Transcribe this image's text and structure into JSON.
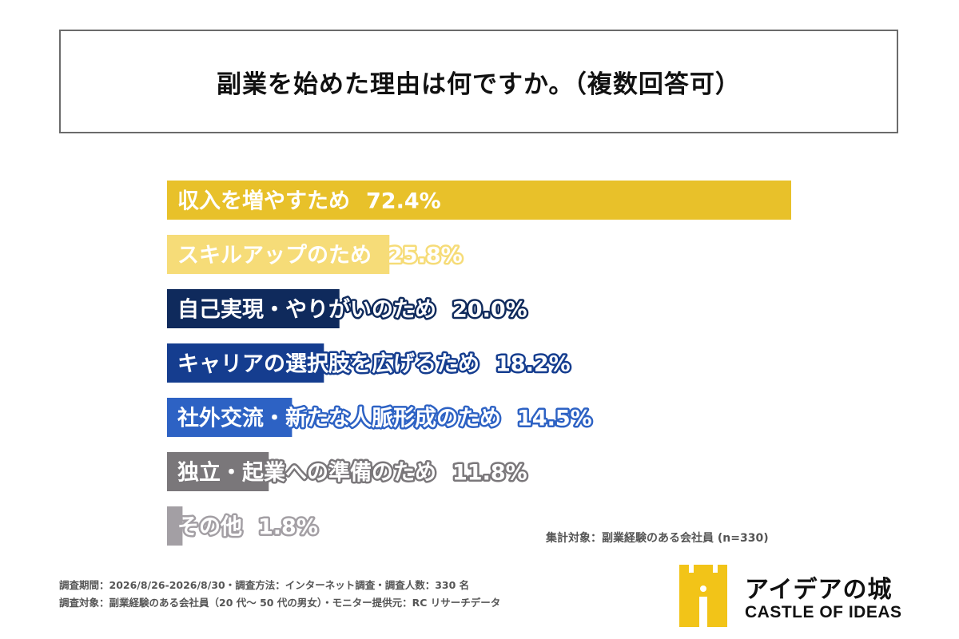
{
  "title": "副業を始めた理由は何ですか。（複数回答可）",
  "chart_data": {
    "type": "bar",
    "orientation": "horizontal",
    "categories": [
      "収入を増やすため",
      "スキルアップのため",
      "自己実現・やりがいのため",
      "キャリアの選択肢を広げるため",
      "社外交流・新たな人脈形成のため",
      "独立・起業への準備のため",
      "その他"
    ],
    "values": [
      72.4,
      25.8,
      20.0,
      18.2,
      14.5,
      11.8,
      1.8
    ],
    "value_labels": [
      "72.4%",
      "25.8%",
      "20.0%",
      "18.2%",
      "14.5%",
      "11.8%",
      "1.8%"
    ],
    "colors": [
      "#e8c12a",
      "#f6dc78",
      "#0f2a5c",
      "#153d8f",
      "#2d62c4",
      "#7a777a",
      "#a39fa4"
    ],
    "label_text_colors": [
      "#ffffff",
      "#ffffff",
      "#ffffff",
      "#ffffff",
      "#ffffff",
      "#ffffff",
      "#ffffff"
    ],
    "label_outline_colors": [
      "#e8c12a",
      "#f6dc78",
      "#0f2a5c",
      "#153d8f",
      "#2d62c4",
      "#7a777a",
      "#a39fa4"
    ],
    "xlim": [
      0,
      72.4
    ]
  },
  "note": "集計対象：副業経験のある会社員 (n=330)",
  "footer": {
    "line1": "調査期間：2026/8/26-2026/8/30・調査方法：インターネット調査・調査人数：330 名",
    "line2": "調査対象：副業経験のある会社員（20 代〜 50 代の男女）・モニター提供元：RC リサーチデータ"
  },
  "logo": {
    "name_jp": "アイデアの城",
    "name_en": "CASTLE OF IDEAS",
    "color": "#f2c418"
  }
}
